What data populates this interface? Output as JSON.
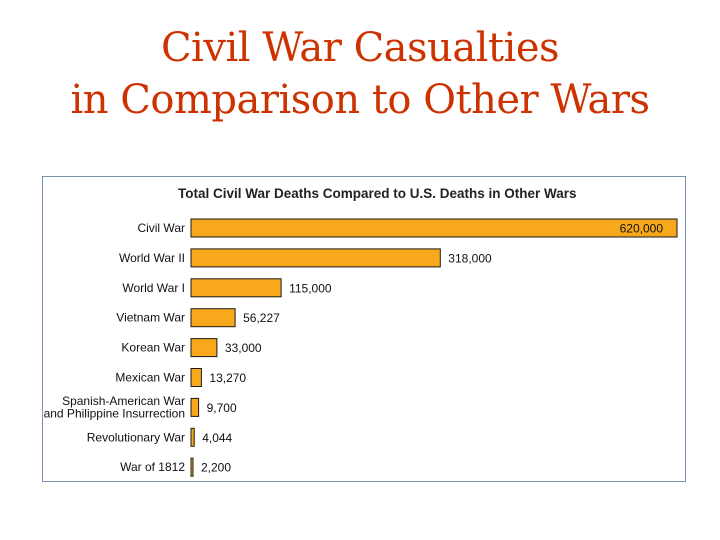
{
  "slide": {
    "title_line1": "Civil War Casualties",
    "title_line2": "in Comparison to Other Wars",
    "title_color": "#cc3300"
  },
  "chart_data": {
    "type": "bar",
    "orientation": "horizontal",
    "title": "Total Civil War Deaths Compared to U.S. Deaths in Other Wars",
    "bar_color": "#f7a81b",
    "bar_outline_color": "#1a1a1a",
    "grid": false,
    "xlim": [
      0,
      620000
    ],
    "categories": [
      [
        "Civil War"
      ],
      [
        "World War II"
      ],
      [
        "World War I"
      ],
      [
        "Vietnam War"
      ],
      [
        "Korean War"
      ],
      [
        "Mexican War"
      ],
      [
        "Spanish-American War",
        "and Philippine Insurrection"
      ],
      [
        "Revolutionary War"
      ],
      [
        "War of 1812"
      ]
    ],
    "values": [
      620000,
      318000,
      115000,
      56227,
      33000,
      13270,
      9700,
      4044,
      2200
    ],
    "value_labels": [
      "620,000",
      "318,000",
      "115,000",
      "56,227",
      "33,000",
      "13,270",
      "9,700",
      "4,044",
      "2,200"
    ]
  }
}
